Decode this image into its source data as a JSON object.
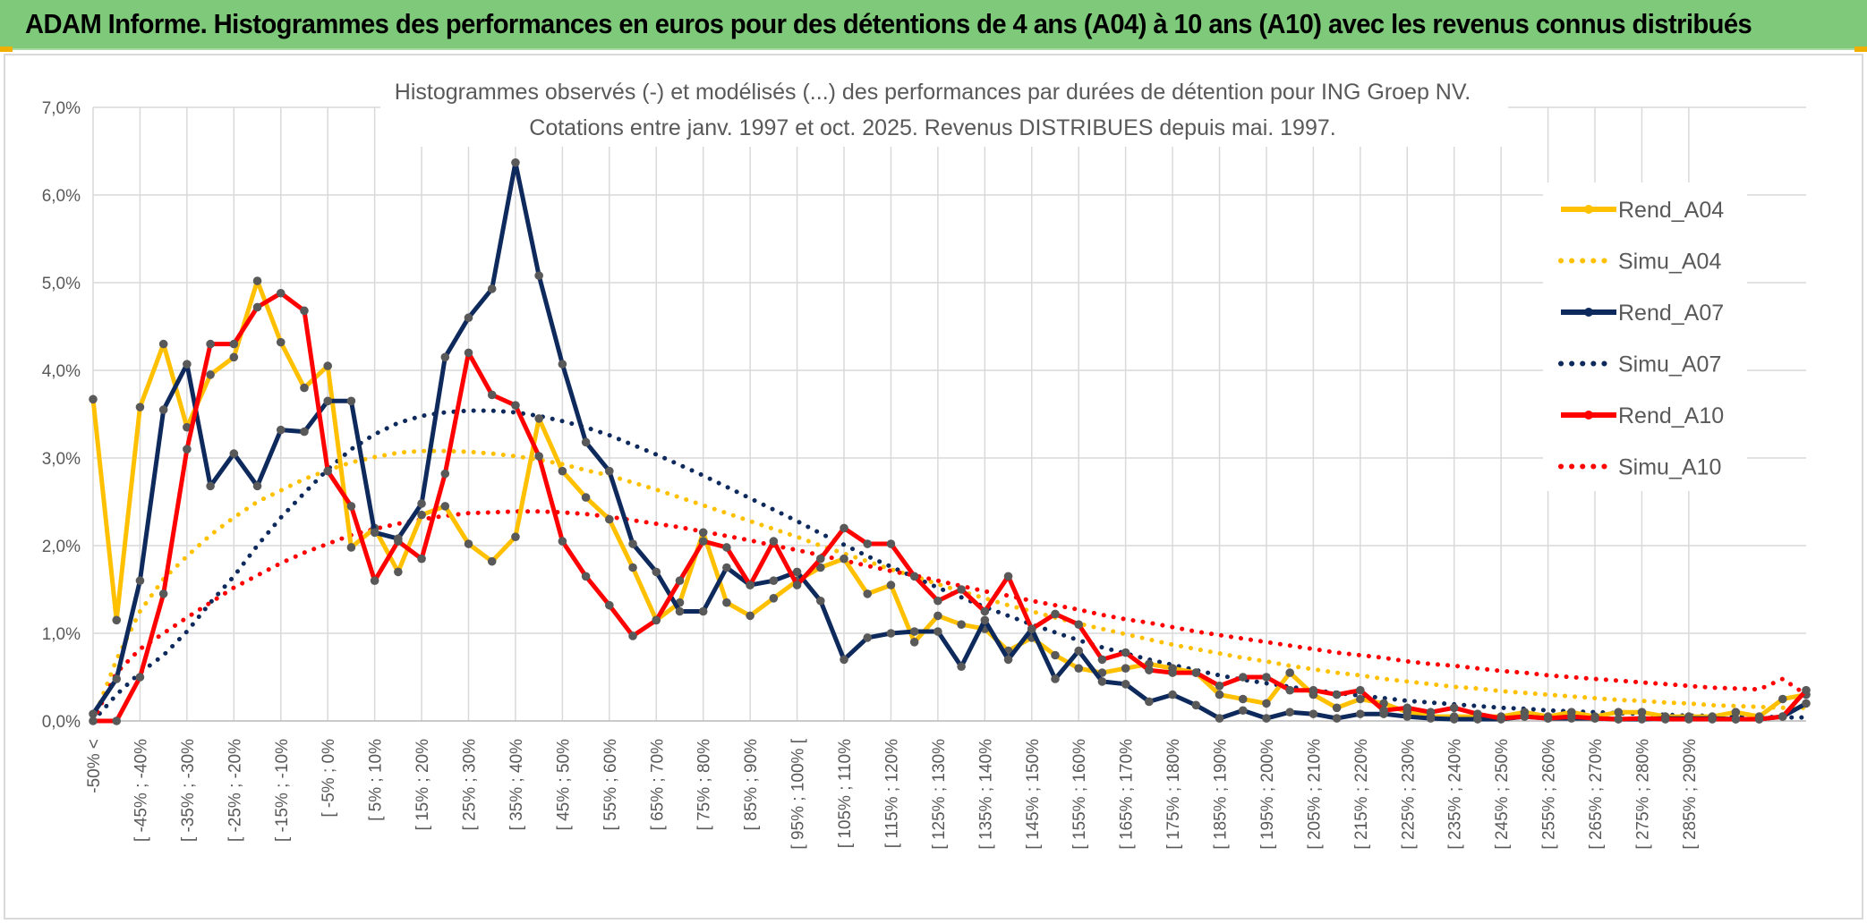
{
  "header": {
    "title": "ADAM Informe. Histogrammes des performances en euros pour des détentions de 4 ans (A04) à 10 ans (A10) avec les revenus connus distribués"
  },
  "colors": {
    "banner": "#7ec97a",
    "A04": "#ffc000",
    "A07": "#0e2a5c",
    "A10": "#ff0000",
    "grid": "#d9d9d9"
  },
  "chart_data": {
    "type": "line",
    "title": "Histogrammes observés (-) et modélisés (...) des performances par durées de détention pour ING Groep NV.",
    "subtitle": "Cotations entre janv. 1997 et oct. 2025. Revenus DISTRIBUES depuis mai. 1997.",
    "ylim": [
      0,
      7
    ],
    "y_ticks": [
      "0,0%",
      "1,0%",
      "2,0%",
      "3,0%",
      "4,0%",
      "5,0%",
      "6,0%",
      "7,0%"
    ],
    "grid": true,
    "legend_position": "right",
    "x_labels": [
      "-50% <",
      "[ -45% ; -40%",
      "[ -35% ; -30%",
      "[ -25% ; -20%",
      "[ -15% ; -10%",
      "[ -5% ; 0%",
      "[ 5% ; 10%",
      "[ 15% ; 20%",
      "[ 25% ; 30%",
      "[ 35% ; 40%",
      "[ 45% ; 50%",
      "[ 55% ; 60%",
      "[ 65% ; 70%",
      "[ 75% ; 80%",
      "[ 85% ; 90%",
      "[ 95% ; 100% [",
      "[ 105% ; 110%",
      "[ 115% ; 120%",
      "[ 125% ; 130%",
      "[ 135% ; 140%",
      "[ 145% ; 150%",
      "[ 155% ; 160%",
      "[ 165% ; 170%",
      "[ 175% ; 180%",
      "[ 185% ; 190%",
      "[ 195% ; 200%",
      "[ 205% ; 210%",
      "[ 215% ; 220%",
      "[ 225% ; 230%",
      "[ 235% ; 240%",
      "[ 245% ; 250%",
      "[ 255% ; 260%",
      "[ 265% ; 270%",
      "[ 275% ; 280%",
      "[ 285% ; 290%"
    ],
    "series": [
      {
        "name": "Rend_A04",
        "style": "solid",
        "color": "#ffc000",
        "values": [
          3.67,
          1.15,
          3.58,
          4.3,
          3.35,
          3.95,
          4.15,
          5.02,
          4.32,
          3.8,
          4.05,
          1.98,
          2.2,
          1.7,
          2.35,
          2.45,
          2.02,
          1.82,
          2.1,
          3.45,
          2.85,
          2.55,
          2.3,
          1.75,
          1.15,
          1.35,
          2.15,
          1.35,
          1.2,
          1.4,
          1.6,
          1.75,
          1.85,
          1.45,
          1.55,
          0.9,
          1.2,
          1.1,
          1.05,
          0.8,
          0.95,
          0.75,
          0.6,
          0.55,
          0.6,
          0.65,
          0.6,
          0.55,
          0.3,
          0.25,
          0.2,
          0.55,
          0.3,
          0.15,
          0.25,
          0.2,
          0.1,
          0.05,
          0.05,
          0.05,
          0.05,
          0.1,
          0.05,
          0.1,
          0.05,
          0.1,
          0.1,
          0.05,
          0.05,
          0.05,
          0.1,
          0.05,
          0.25,
          0.3
        ]
      },
      {
        "name": "Simu_A04",
        "style": "dotted",
        "color": "#ffc000",
        "values": [
          0.0,
          0.7,
          1.25,
          1.62,
          1.88,
          2.12,
          2.32,
          2.5,
          2.63,
          2.76,
          2.86,
          2.95,
          3.01,
          3.06,
          3.08,
          3.08,
          3.07,
          3.05,
          3.02,
          2.98,
          2.93,
          2.86,
          2.8,
          2.72,
          2.64,
          2.55,
          2.46,
          2.37,
          2.28,
          2.19,
          2.1,
          2.0,
          1.91,
          1.82,
          1.73,
          1.65,
          1.56,
          1.48,
          1.4,
          1.32,
          1.25,
          1.18,
          1.11,
          1.05,
          0.99,
          0.93,
          0.87,
          0.82,
          0.77,
          0.72,
          0.68,
          0.63,
          0.59,
          0.55,
          0.52,
          0.48,
          0.45,
          0.42,
          0.39,
          0.37,
          0.34,
          0.32,
          0.3,
          0.28,
          0.26,
          0.24,
          0.23,
          0.21,
          0.2,
          0.18,
          0.17,
          0.16,
          0.15,
          0.15
        ]
      },
      {
        "name": "Rend_A07",
        "style": "solid",
        "color": "#0e2a5c",
        "values": [
          0.08,
          0.48,
          1.6,
          3.55,
          4.07,
          2.68,
          3.05,
          2.68,
          3.32,
          3.3,
          3.65,
          3.65,
          2.15,
          2.08,
          2.48,
          4.15,
          4.6,
          4.93,
          6.37,
          5.08,
          4.07,
          3.18,
          2.85,
          2.02,
          1.7,
          1.25,
          1.25,
          1.75,
          1.55,
          1.6,
          1.7,
          1.37,
          0.7,
          0.95,
          1.0,
          1.02,
          1.02,
          0.62,
          1.15,
          0.7,
          1.05,
          0.48,
          0.8,
          0.45,
          0.42,
          0.22,
          0.3,
          0.18,
          0.03,
          0.12,
          0.03,
          0.1,
          0.08,
          0.03,
          0.08,
          0.08,
          0.05,
          0.03,
          0.02,
          0.02,
          0.02,
          0.05,
          0.03,
          0.03,
          0.03,
          0.02,
          0.02,
          0.03,
          0.03,
          0.03,
          0.02,
          0.02,
          0.05,
          0.2
        ]
      },
      {
        "name": "Simu_A07",
        "style": "dotted",
        "color": "#0e2a5c",
        "values": [
          0.0,
          0.3,
          0.55,
          0.75,
          1.02,
          1.35,
          1.65,
          2.0,
          2.32,
          2.6,
          2.87,
          3.1,
          3.27,
          3.4,
          3.48,
          3.52,
          3.54,
          3.54,
          3.52,
          3.48,
          3.42,
          3.35,
          3.26,
          3.15,
          3.04,
          2.92,
          2.8,
          2.67,
          2.54,
          2.41,
          2.28,
          2.14,
          2.01,
          1.88,
          1.76,
          1.64,
          1.52,
          1.41,
          1.3,
          1.2,
          1.1,
          1.01,
          0.92,
          0.84,
          0.77,
          0.7,
          0.64,
          0.58,
          0.52,
          0.47,
          0.43,
          0.39,
          0.35,
          0.32,
          0.29,
          0.26,
          0.23,
          0.21,
          0.19,
          0.17,
          0.15,
          0.14,
          0.12,
          0.11,
          0.1,
          0.09,
          0.08,
          0.07,
          0.06,
          0.06,
          0.05,
          0.05,
          0.04,
          0.04
        ]
      },
      {
        "name": "Rend_A10",
        "style": "solid",
        "color": "#ff0000",
        "values": [
          0.0,
          0.0,
          0.5,
          1.45,
          3.1,
          4.3,
          4.3,
          4.72,
          4.88,
          4.68,
          2.85,
          2.45,
          1.6,
          2.05,
          1.85,
          2.82,
          4.2,
          3.72,
          3.6,
          3.02,
          2.05,
          1.65,
          1.32,
          0.97,
          1.15,
          1.6,
          2.05,
          1.98,
          1.55,
          2.05,
          1.55,
          1.85,
          2.2,
          2.02,
          2.02,
          1.65,
          1.37,
          1.5,
          1.25,
          1.65,
          1.05,
          1.22,
          1.1,
          0.7,
          0.78,
          0.58,
          0.55,
          0.55,
          0.4,
          0.5,
          0.5,
          0.35,
          0.35,
          0.3,
          0.35,
          0.12,
          0.15,
          0.1,
          0.15,
          0.08,
          0.03,
          0.05,
          0.03,
          0.05,
          0.03,
          0.02,
          0.03,
          0.02,
          0.02,
          0.02,
          0.02,
          0.02,
          0.05,
          0.35
        ]
      },
      {
        "name": "Simu_A10",
        "style": "dotted",
        "color": "#ff0000",
        "values": [
          0.0,
          0.55,
          0.82,
          1.0,
          1.18,
          1.35,
          1.52,
          1.66,
          1.8,
          1.92,
          2.02,
          2.12,
          2.19,
          2.25,
          2.3,
          2.34,
          2.37,
          2.38,
          2.39,
          2.39,
          2.38,
          2.36,
          2.33,
          2.29,
          2.25,
          2.21,
          2.16,
          2.11,
          2.06,
          2.0,
          1.95,
          1.89,
          1.83,
          1.77,
          1.71,
          1.66,
          1.6,
          1.54,
          1.48,
          1.43,
          1.37,
          1.32,
          1.27,
          1.21,
          1.16,
          1.12,
          1.07,
          1.02,
          0.98,
          0.94,
          0.9,
          0.86,
          0.82,
          0.78,
          0.75,
          0.72,
          0.68,
          0.65,
          0.63,
          0.6,
          0.57,
          0.55,
          0.52,
          0.5,
          0.48,
          0.46,
          0.44,
          0.42,
          0.4,
          0.38,
          0.37,
          0.36,
          0.48,
          0.3
        ]
      }
    ]
  }
}
